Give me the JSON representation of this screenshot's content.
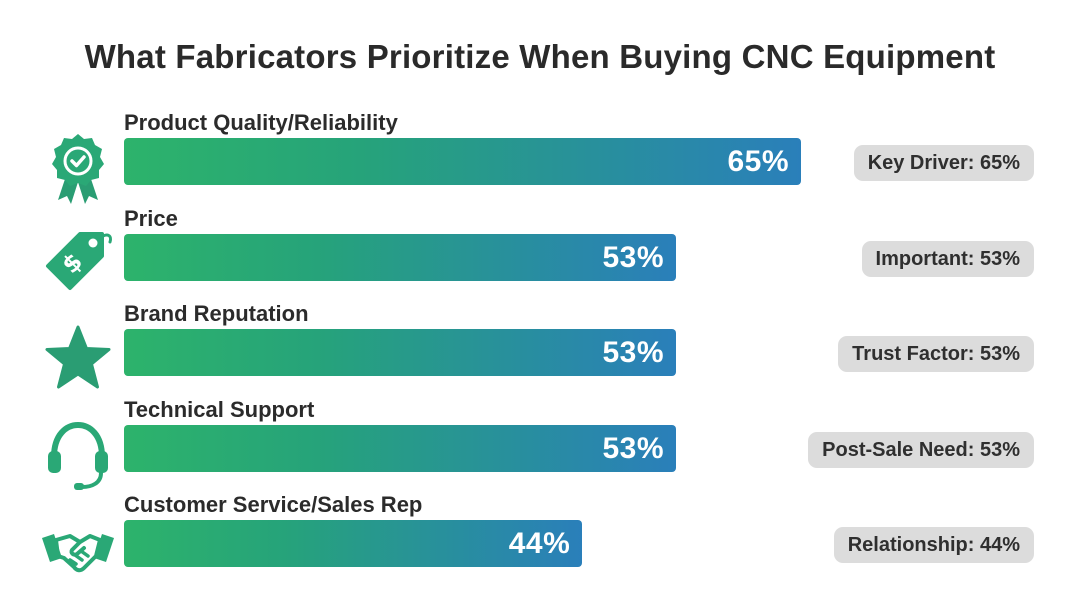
{
  "chart_data": {
    "type": "bar",
    "orientation": "horizontal",
    "title": "What Fabricators Prioritize When Buying CNC Equipment",
    "categories": [
      "Product Quality/Reliability",
      "Price",
      "Brand Reputation",
      "Technical Support",
      "Customer Service/Sales Rep"
    ],
    "values": [
      65,
      53,
      53,
      53,
      44
    ],
    "value_labels": [
      "65%",
      "53%",
      "53%",
      "53%",
      "44%"
    ],
    "badges": [
      "Key Driver: 65%",
      "Important: 53%",
      "Trust Factor: 53%",
      "Post-Sale Need: 53%",
      "Relationship: 44%"
    ],
    "icons": [
      "award-ribbon-icon",
      "price-tag-icon",
      "star-icon",
      "headset-icon",
      "handshake-icon"
    ],
    "xlim": [
      0,
      100
    ],
    "grid": false,
    "colors": {
      "gradient_start": "#2db36b",
      "gradient_end": "#2a7fba",
      "badge_bg": "#dcdcdc"
    }
  }
}
